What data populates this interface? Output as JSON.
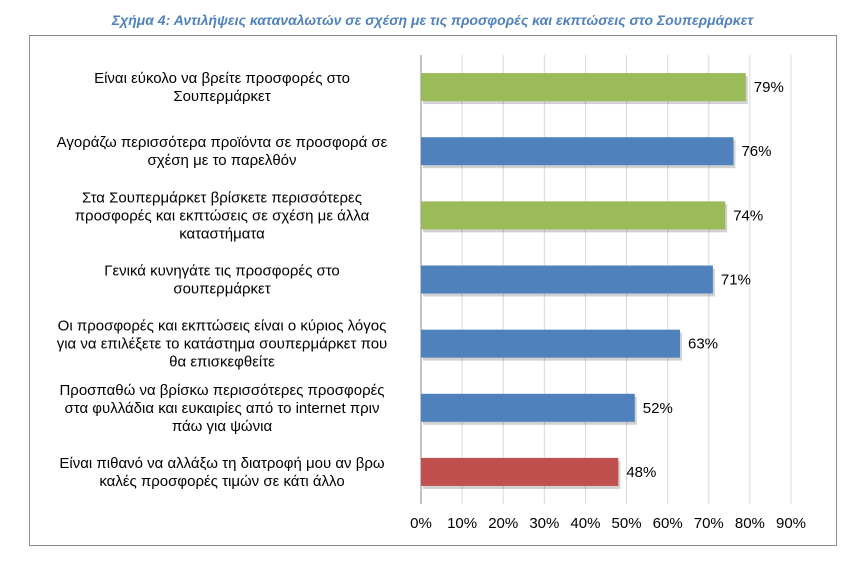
{
  "chart_data": {
    "type": "bar",
    "orientation": "horizontal",
    "title": "Σχήμα 4: Αντιλήψεις καταναλωτών σε σχέση με τις προσφορές και εκπτώσεις στο Σουπερμάρκετ",
    "categories": [
      [
        "Είναι εύκολο να βρείτε προσφορές στο",
        "Σουπερμάρκετ"
      ],
      [
        "Αγοράζω περισσότερα προϊόντα σε προσφορά σε",
        "σχέση με το παρελθόν"
      ],
      [
        "Στα Σουπερμάρκετ βρίσκετε περισσότερες",
        "προσφορές και εκπτώσεις σε σχέση με άλλα",
        "καταστήματα"
      ],
      [
        "Γενικά κυνηγάτε τις προσφορές στο",
        "σουπερμάρκετ"
      ],
      [
        "Οι προσφορές και εκπτώσεις είναι ο κύριος λόγος",
        "για να επιλέξετε το κατάστημα σουπερμάρκετ που",
        "θα επισκεφθείτε"
      ],
      [
        "Προσπαθώ να βρίσκω περισσότερες προσφορές",
        "στα φυλλάδια και ευκαιρίες από το internet πριν",
        "πάω για ψώνια"
      ],
      [
        "Είναι πιθανό να αλλάξω τη διατροφή μου αν βρω",
        "καλές προσφορές τιμών σε κάτι άλλο"
      ]
    ],
    "values": [
      79,
      76,
      74,
      71,
      63,
      52,
      48
    ],
    "value_labels": [
      "79%",
      "76%",
      "74%",
      "71%",
      "63%",
      "52%",
      "48%"
    ],
    "bar_colors": [
      "#9bbb59",
      "#4f81bd",
      "#9bbb59",
      "#4f81bd",
      "#4f81bd",
      "#4f81bd",
      "#c0504d"
    ],
    "xlim": [
      0,
      90
    ],
    "xticks": [
      0,
      10,
      20,
      30,
      40,
      50,
      60,
      70,
      80,
      90
    ],
    "xtick_labels": [
      "0%",
      "10%",
      "20%",
      "30%",
      "40%",
      "50%",
      "60%",
      "70%",
      "80%",
      "90%"
    ],
    "grid": true,
    "legend": "none",
    "xlabel": "",
    "ylabel": ""
  }
}
